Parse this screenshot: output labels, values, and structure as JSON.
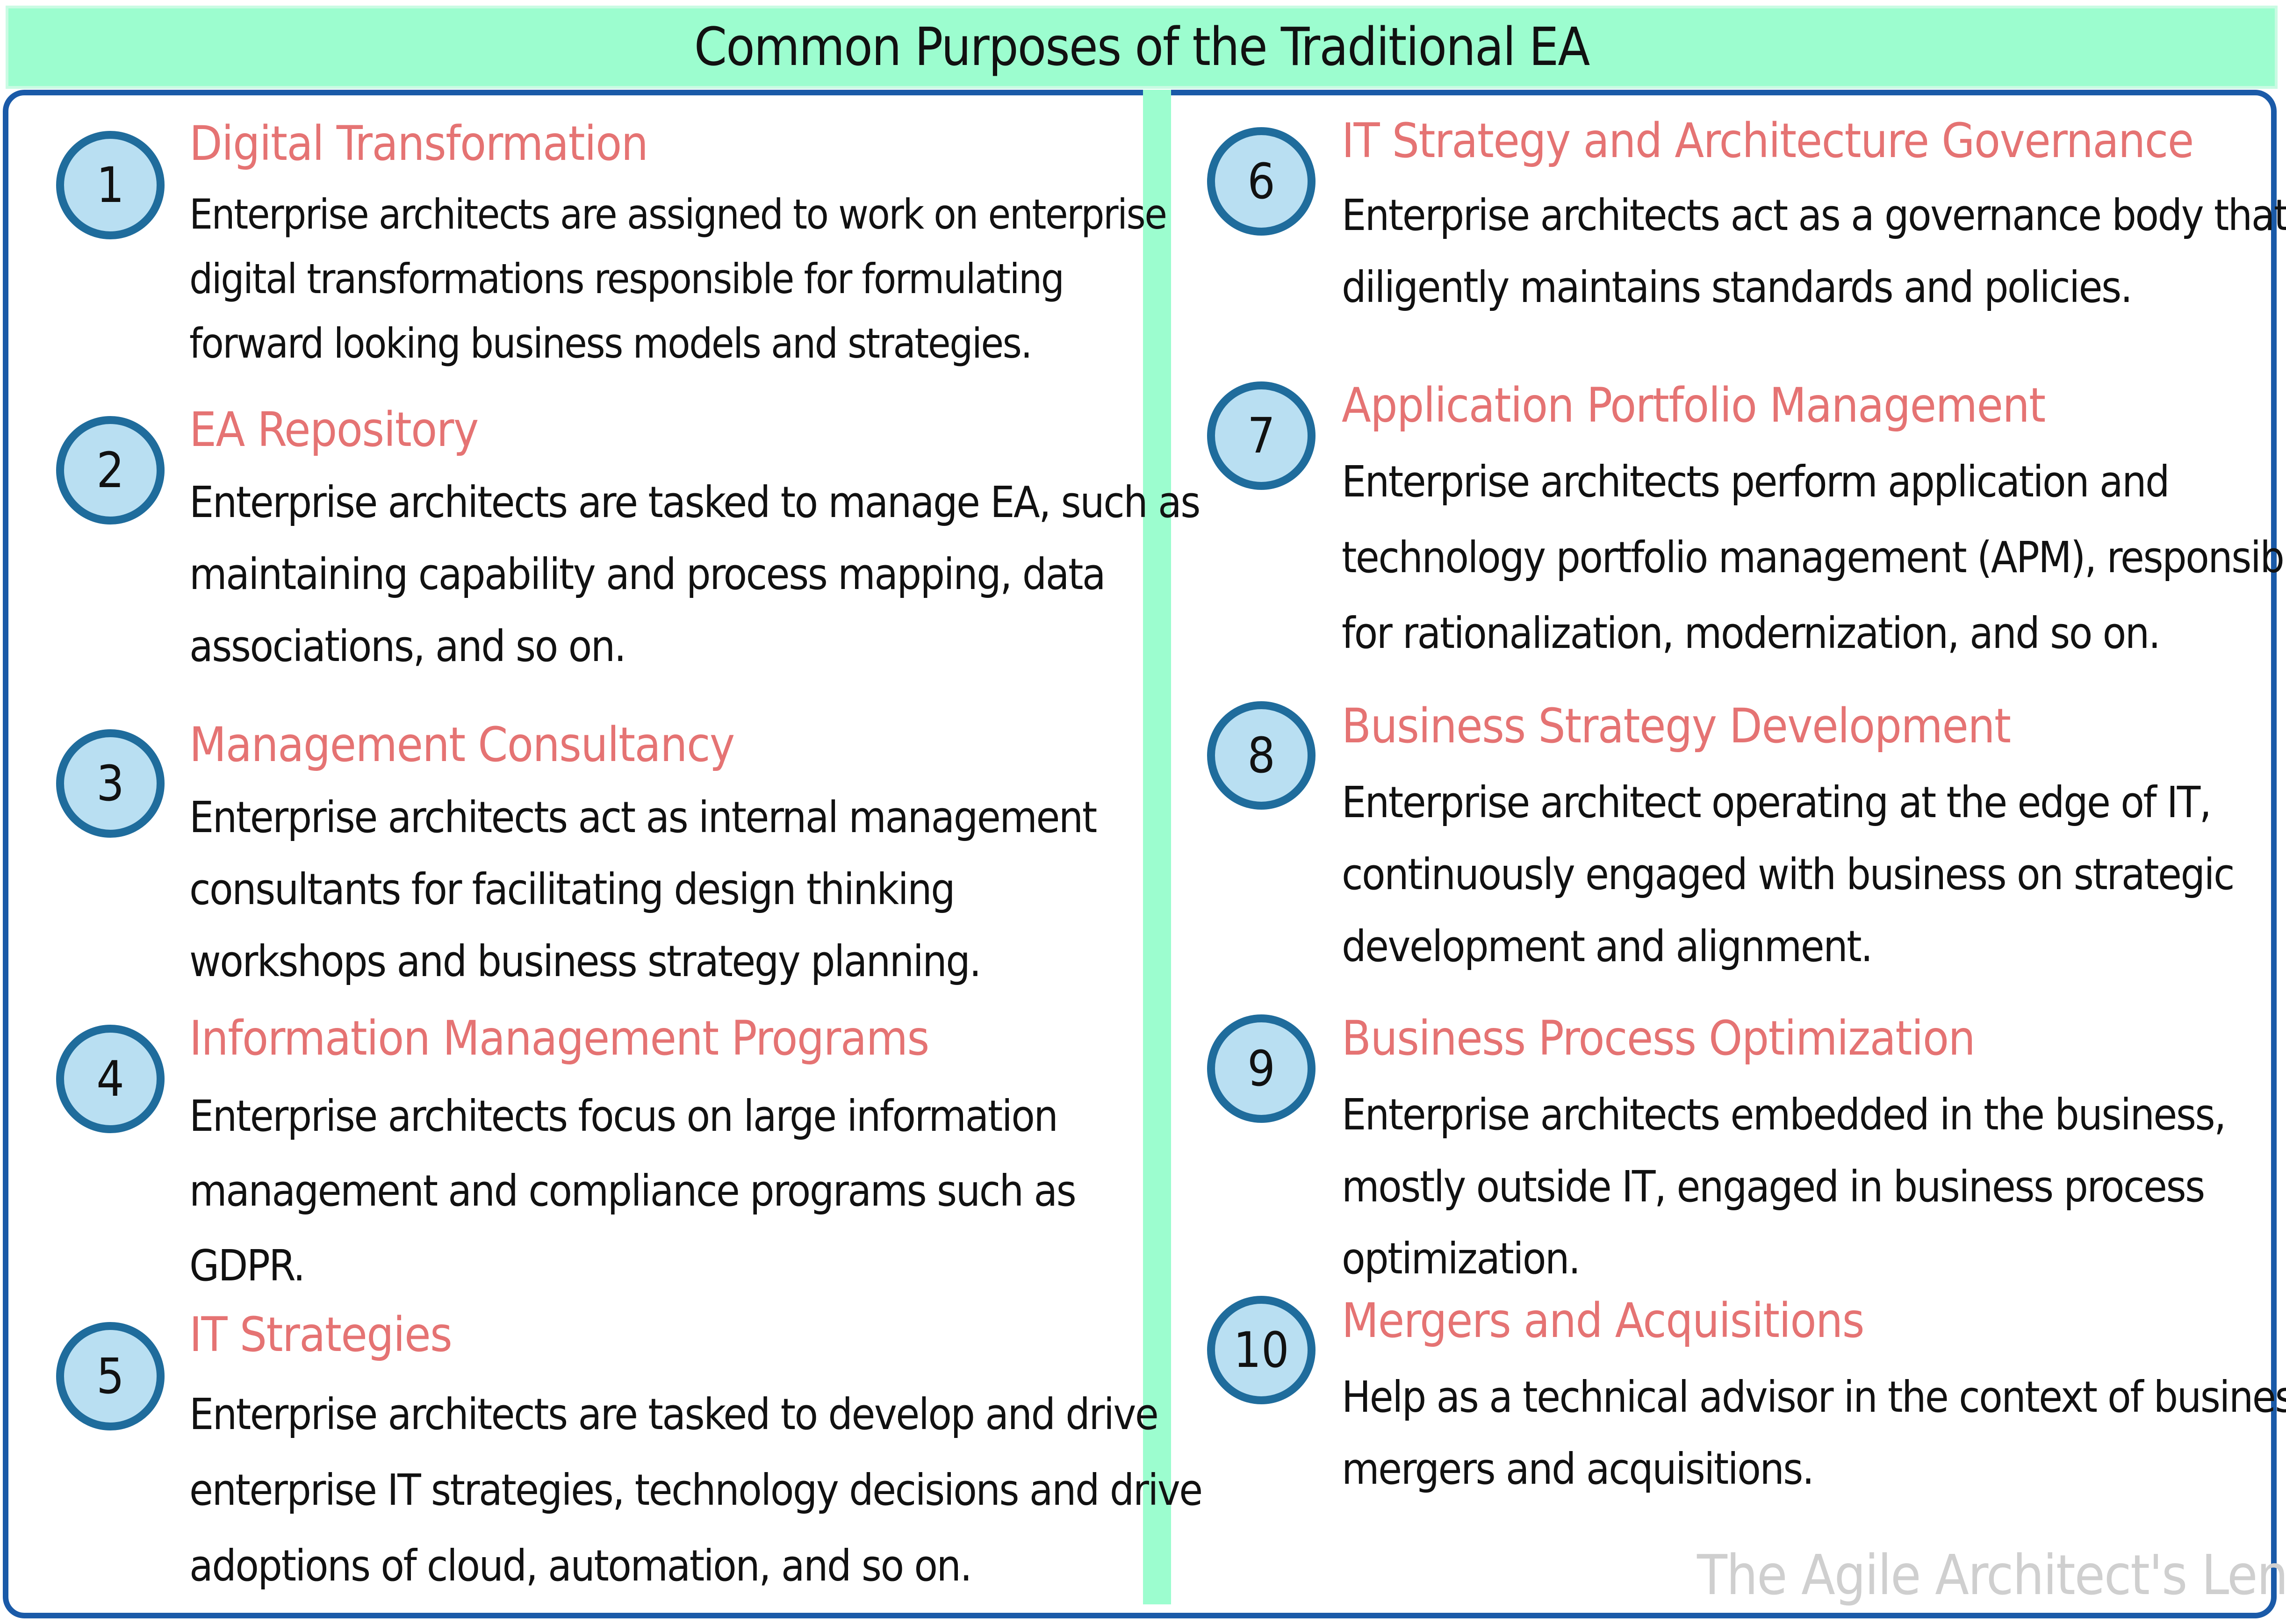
{
  "title": "Common Purposes of the Traditional EA",
  "watermark": "The Agile Architect's Lens",
  "colors": {
    "header_bg": "#9cfdcf",
    "frame_border": "#1a5aa8",
    "circle_fill": "#b9dff2",
    "circle_border": "#1f6c9c",
    "heading_text": "#e57373",
    "body_text": "#111111"
  },
  "items": [
    {
      "number": "1",
      "heading": "Digital Transformation",
      "lines": [
        "Enterprise architects are assigned to work on enterprise",
        "digital transformations responsible for formulating",
        "forward looking business models and strategies."
      ]
    },
    {
      "number": "2",
      "heading": "EA Repository",
      "lines": [
        "Enterprise architects are tasked to manage EA, such as",
        "maintaining capability and  process mapping, data",
        "associations, and so on."
      ]
    },
    {
      "number": "3",
      "heading": "Management Consultancy",
      "lines": [
        "Enterprise architects act as internal management",
        "consultants for facilitating design thinking",
        "workshops and business strategy planning."
      ]
    },
    {
      "number": "4",
      "heading": "Information Management Programs",
      "lines": [
        "Enterprise architects focus on large information",
        "management and compliance programs such as",
        "GDPR."
      ]
    },
    {
      "number": "5",
      "heading": "IT Strategies",
      "lines": [
        "Enterprise architects are tasked to develop and drive",
        "enterprise IT strategies, technology decisions and drive",
        "adoptions of cloud, automation, and so on."
      ]
    },
    {
      "number": "6",
      "heading": "IT Strategy and Architecture Governance",
      "lines": [
        "Enterprise architects act as a governance body that",
        "diligently maintains standards and policies."
      ]
    },
    {
      "number": "7",
      "heading": "Application Portfolio Management",
      "lines": [
        "Enterprise architects perform application and",
        "technology portfolio management (APM), responsible",
        "for rationalization, modernization, and so on."
      ]
    },
    {
      "number": "8",
      "heading": "Business Strategy Development",
      "lines": [
        "Enterprise architect operating at the edge of IT,",
        "continuously engaged with business on strategic",
        "development and alignment."
      ]
    },
    {
      "number": "9",
      "heading": "Business Process Optimization",
      "lines": [
        "Enterprise architects embedded in the business,",
        "mostly outside IT, engaged in business process",
        "optimization."
      ]
    },
    {
      "number": "10",
      "heading": "Mergers and Acquisitions",
      "lines": [
        "Help as a technical advisor in the context of business",
        "mergers and acquisitions."
      ]
    }
  ]
}
